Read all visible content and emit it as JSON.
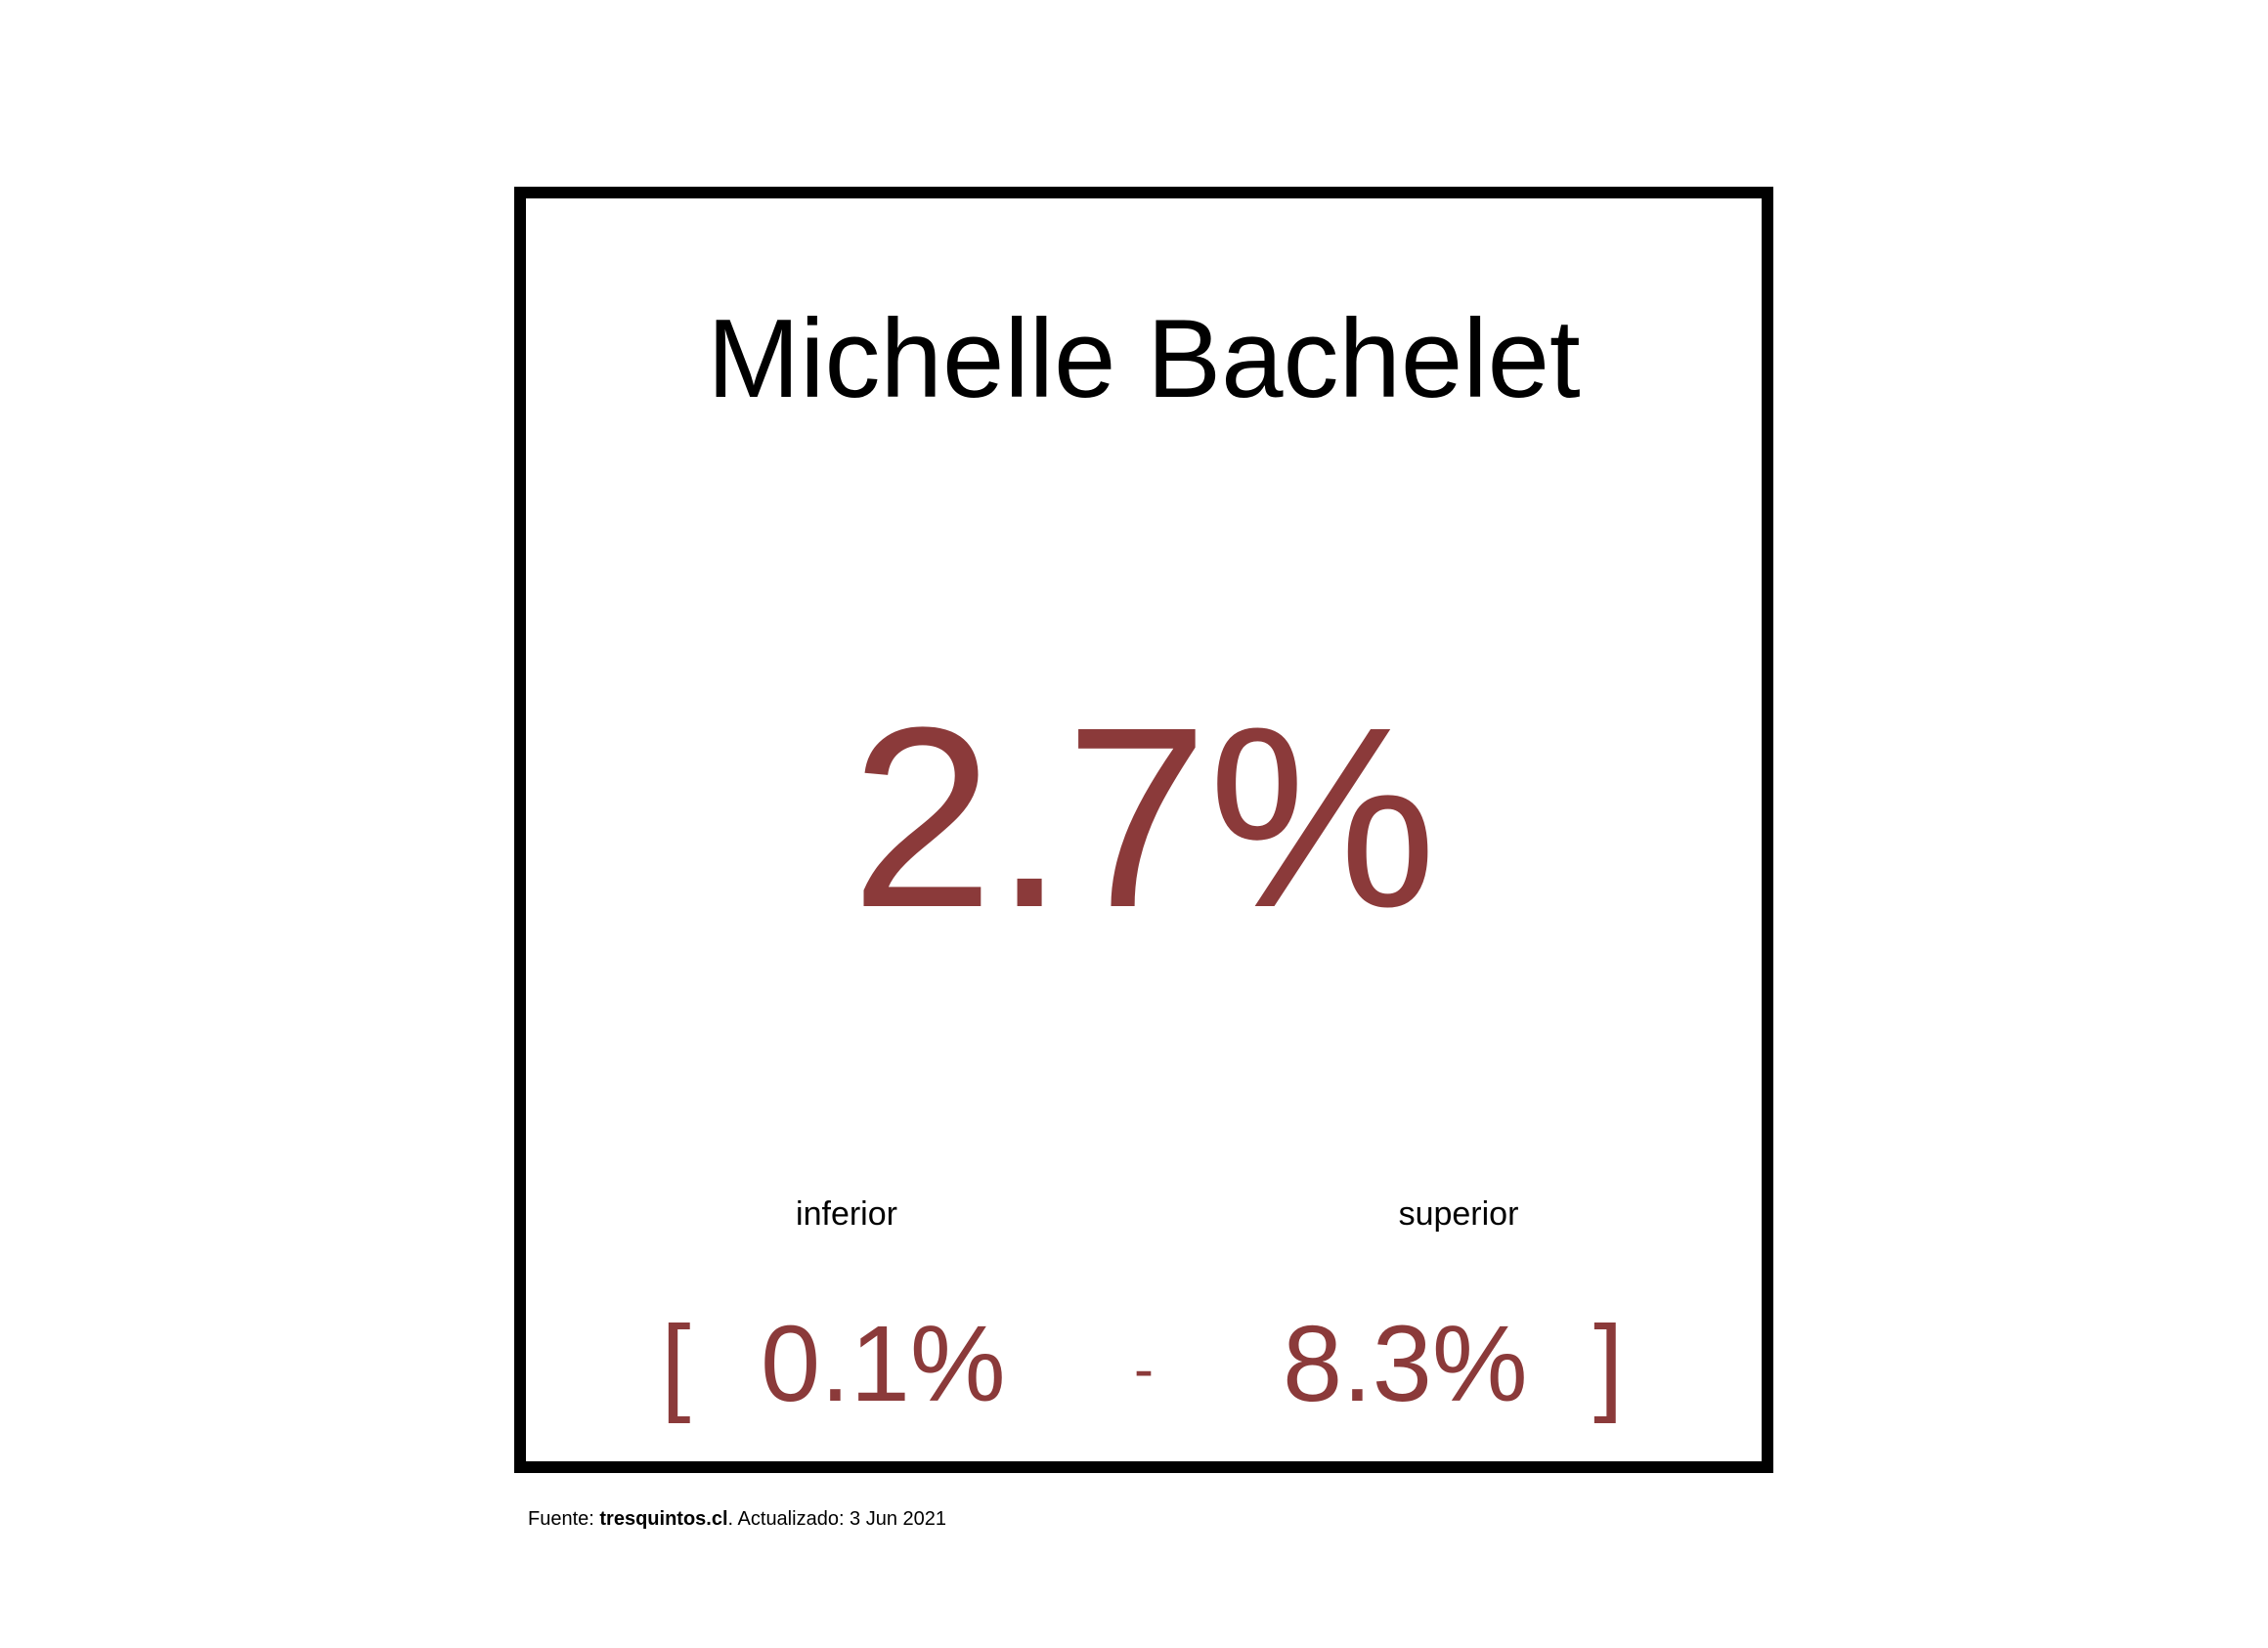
{
  "card": {
    "name": "Michelle Bachelet",
    "value": "2.7%",
    "lower_label": "inferior",
    "upper_label": "superior",
    "bracket_open": "[",
    "lower_value": "0.1%",
    "separator": "-",
    "upper_value": "8.3%",
    "bracket_close": "]"
  },
  "footer": {
    "prefix": "Fuente: ",
    "source": "tresquintos.cl",
    "suffix": ". Actualizado: 3 Jun 2021"
  },
  "colors": {
    "accent": "#8b3a3a",
    "text": "#000000",
    "border": "#000000",
    "background": "#ffffff"
  }
}
